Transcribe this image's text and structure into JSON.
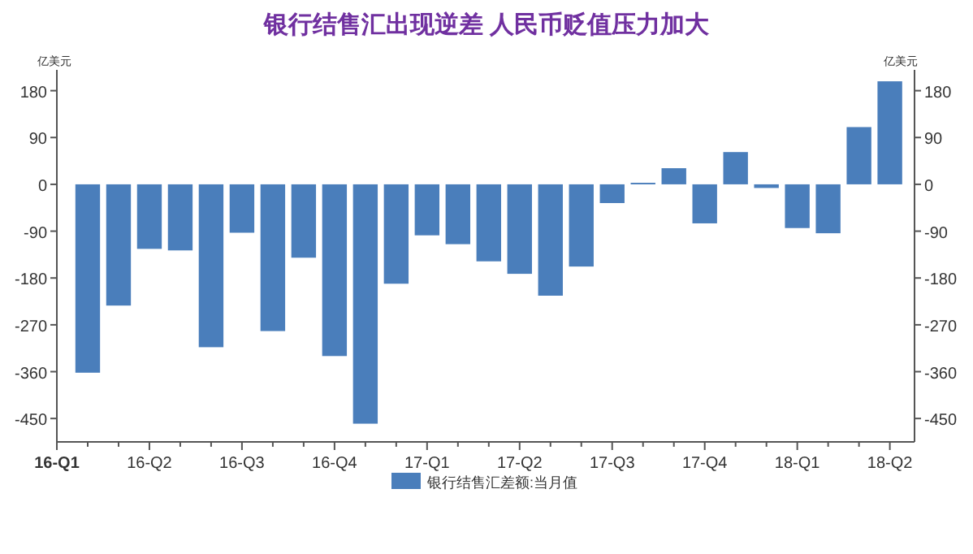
{
  "chart_data": {
    "type": "bar",
    "title": "银行结售汇出现逆差 人民币贬值压力加大",
    "ylabel": "亿美元",
    "y2label": "亿美元",
    "categories": [
      "16-Q1",
      null,
      null,
      "16-Q2",
      null,
      null,
      "16-Q3",
      null,
      null,
      "16-Q4",
      null,
      null,
      "17-Q1",
      null,
      null,
      "17-Q2",
      null,
      null,
      "17-Q3",
      null,
      null,
      "17-Q4",
      null,
      null,
      "18-Q1",
      null,
      null,
      "18-Q2"
    ],
    "series": [
      {
        "name": "银行结售汇差额:当月值",
        "color": "#4a7ebb",
        "values": [
          null,
          -362,
          -233,
          -124,
          -127,
          -313,
          -93,
          -282,
          -141,
          -330,
          -460,
          -191,
          -98,
          -115,
          -148,
          -172,
          -214,
          -158,
          -36,
          3,
          31,
          -75,
          62,
          -7,
          -84,
          -94,
          110,
          198
        ]
      }
    ],
    "ylim": [
      -495,
      220
    ],
    "yticks": [
      -450,
      -360,
      -270,
      -180,
      -90,
      0,
      90,
      180
    ],
    "y2lim": [
      -495,
      220
    ],
    "y2ticks": [
      -450,
      -360,
      -270,
      -180,
      -90,
      0,
      90,
      180
    ],
    "grid": false,
    "legend": "bottom"
  }
}
